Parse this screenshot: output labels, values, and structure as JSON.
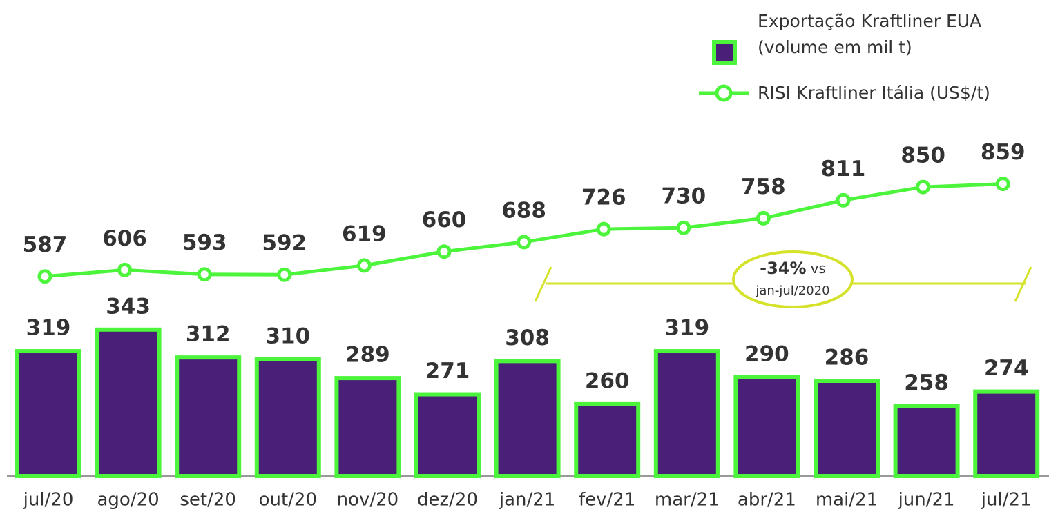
{
  "chart_data": {
    "type": "bar_line",
    "categories": [
      "jul/20",
      "ago/20",
      "set/20",
      "out/20",
      "nov/20",
      "dez/20",
      "jan/21",
      "fev/21",
      "mar/21",
      "abr/21",
      "mai/21",
      "jun/21",
      "jul/21"
    ],
    "series": [
      {
        "name": "Exportação Kraftliner EUA (volume em mil t)",
        "type": "bar",
        "color": "#4a1f78",
        "edge_color": "#4cf53b",
        "values": [
          319,
          343,
          312,
          310,
          289,
          271,
          308,
          260,
          319,
          290,
          286,
          258,
          274
        ]
      },
      {
        "name": "RISI Kraftliner Itália (US$/t)",
        "type": "line",
        "axis": "y2",
        "color": "#4cf53b",
        "values": [
          587,
          606,
          593,
          592,
          619,
          660,
          688,
          726,
          730,
          758,
          811,
          850,
          859
        ]
      }
    ],
    "ylim": [
      180,
      710
    ],
    "y2lim": [
      0,
      1400
    ],
    "annotation": {
      "change": "-34%",
      "word": "vs",
      "period": "jan-jul/2020"
    }
  }
}
